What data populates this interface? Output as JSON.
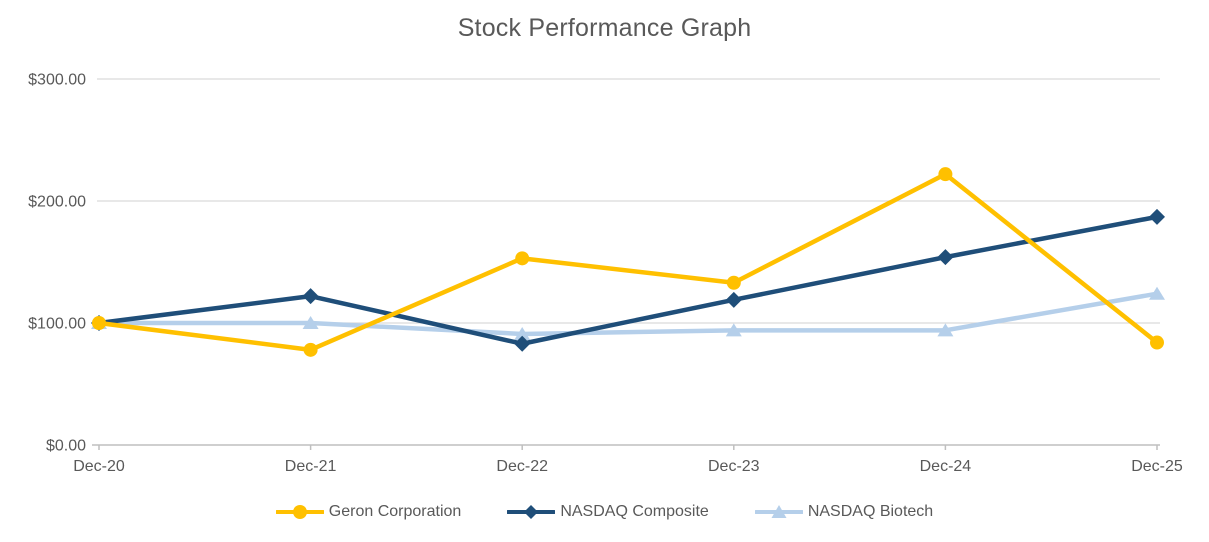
{
  "title": "Stock Performance Graph",
  "colors": {
    "geron": "#FFC000",
    "nasdaq_composite": "#1F4E79",
    "nasdaq_biotech": "#B5CFEA",
    "gridline": "#D9D9D9",
    "axis_line": "#BFBFBF",
    "text": "#595959"
  },
  "chart_data": {
    "type": "line",
    "title": "Stock Performance Graph",
    "categories": [
      "Dec-20",
      "Dec-21",
      "Dec-22",
      "Dec-23",
      "Dec-24",
      "Dec-25"
    ],
    "series": [
      {
        "name": "Geron Corporation",
        "marker": "circle",
        "color": "#FFC000",
        "values": [
          100,
          78,
          153,
          133,
          222,
          84
        ]
      },
      {
        "name": "NASDAQ Composite",
        "marker": "diamond",
        "color": "#1F4E79",
        "values": [
          100,
          122,
          83,
          119,
          154,
          187
        ]
      },
      {
        "name": "NASDAQ Biotech",
        "marker": "triangle",
        "color": "#B5CFEA",
        "values": [
          100,
          100,
          91,
          94,
          94,
          124
        ]
      }
    ],
    "y_ticks": [
      {
        "label": "$0.00",
        "value": 0
      },
      {
        "label": "$100.00",
        "value": 100
      },
      {
        "label": "$200.00",
        "value": 200
      },
      {
        "label": "$300.00",
        "value": 300
      }
    ],
    "ylim": [
      0,
      300
    ],
    "grid": true,
    "legend_position": "bottom"
  }
}
